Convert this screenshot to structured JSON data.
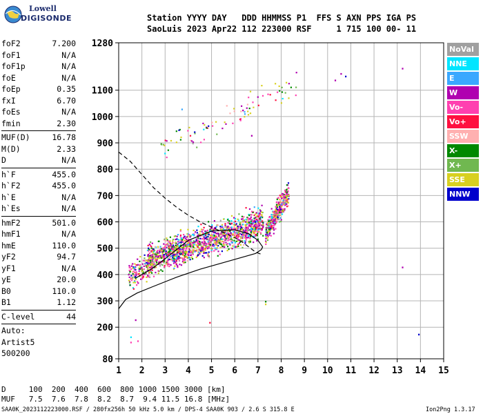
{
  "logo": {
    "line1": "Lowell",
    "line2": "DIGISONDE"
  },
  "header": {
    "line1": "Station YYYY DAY   DDD HHMMSS P1  FFS S AXN PPS IGA PS",
    "line2": "SaoLuis 2023 Apr22 112 223000 RSF     1 715 100 00- 11"
  },
  "params": [
    {
      "label": "foF2",
      "value": "7.200"
    },
    {
      "label": "foF1",
      "value": "N/A"
    },
    {
      "label": "foF1p",
      "value": "N/A"
    },
    {
      "label": "foE",
      "value": "N/A"
    },
    {
      "label": "foEp",
      "value": "0.35"
    },
    {
      "label": "fxI",
      "value": "6.70"
    },
    {
      "label": "foEs",
      "value": "N/A"
    },
    {
      "label": "fmin",
      "value": "2.30"
    },
    {
      "sep": true
    },
    {
      "label": "MUF(D)",
      "value": "16.78"
    },
    {
      "label": "M(D)",
      "value": "2.33"
    },
    {
      "label": "D",
      "value": "N/A"
    },
    {
      "sep": true
    },
    {
      "label": "h`F",
      "value": "455.0"
    },
    {
      "label": "h`F2",
      "value": "455.0"
    },
    {
      "label": "h`E",
      "value": "N/A"
    },
    {
      "label": "h`Es",
      "value": "N/A"
    },
    {
      "sep": true
    },
    {
      "label": "hmF2",
      "value": "501.0"
    },
    {
      "label": "hmF1",
      "value": "N/A"
    },
    {
      "label": "hmE",
      "value": "110.0"
    },
    {
      "label": "yF2",
      "value": "94.7"
    },
    {
      "label": "yF1",
      "value": "N/A"
    },
    {
      "label": "yE",
      "value": "20.0"
    },
    {
      "label": "B0",
      "value": "110.0"
    },
    {
      "label": "B1",
      "value": "1.12"
    },
    {
      "sep": true
    },
    {
      "label": "C-level",
      "value": "44"
    },
    {
      "sep": true
    },
    {
      "text": "Auto:"
    },
    {
      "text": "Artist5"
    },
    {
      "text": "500200"
    }
  ],
  "legend": [
    {
      "label": "NoVal",
      "color": "#a0a0a0"
    },
    {
      "label": "NNE",
      "color": "#00e5ff"
    },
    {
      "label": "E",
      "color": "#3aa8ff"
    },
    {
      "label": "W",
      "color": "#b000b0"
    },
    {
      "label": "Vo-",
      "color": "#ff40b0"
    },
    {
      "label": "Vo+",
      "color": "#ff1040"
    },
    {
      "label": "SSW",
      "color": "#ffb0b0"
    },
    {
      "label": "X-",
      "color": "#008800"
    },
    {
      "label": "X+",
      "color": "#70b850"
    },
    {
      "label": "SSE",
      "color": "#d8d020"
    },
    {
      "label": "NNW",
      "color": "#0000cc"
    }
  ],
  "footer": {
    "distance_row": "D     100  200  400  600  800 1000 1500 3000 [km]",
    "muf_row": "MUF   7.5  7.6  7.8  8.2  8.7  9.4 11.5 16.8 [MHz]",
    "file_info": "SAA0K_2023112223000.RSF / 280fx256h 50 kHz 5.0 km / DPS-4 SAA0K 903 / 2.6 S 315.8 E",
    "version": "Ion2Png 1.3.17"
  },
  "chart_data": {
    "type": "scatter",
    "xlim": [
      1,
      15
    ],
    "ylim": [
      80,
      1280
    ],
    "x_ticks": [
      1,
      2,
      3,
      4,
      5,
      6,
      7,
      8,
      9,
      10,
      11,
      12,
      13,
      14,
      15
    ],
    "y_ticks": [
      80,
      200,
      300,
      400,
      500,
      600,
      700,
      800,
      900,
      1000,
      1100,
      1280
    ],
    "grid": true,
    "profile_curve": {
      "style": "solid",
      "points": [
        [
          1.0,
          270
        ],
        [
          1.3,
          305
        ],
        [
          1.8,
          330
        ],
        [
          2.5,
          355
        ],
        [
          3.5,
          390
        ],
        [
          4.5,
          420
        ],
        [
          5.5,
          445
        ],
        [
          6.3,
          465
        ],
        [
          6.9,
          480
        ],
        [
          7.15,
          495
        ],
        [
          7.2,
          505
        ],
        [
          7.0,
          530
        ],
        [
          6.6,
          555
        ],
        [
          6.0,
          570
        ],
        [
          5.0,
          565
        ],
        [
          4.0,
          530
        ],
        [
          3.0,
          460
        ],
        [
          2.4,
          420
        ],
        [
          2.0,
          400
        ],
        [
          1.7,
          385
        ]
      ]
    },
    "muf_curve": {
      "style": "dashed",
      "points": [
        [
          1.0,
          865
        ],
        [
          1.5,
          830
        ],
        [
          2.0,
          780
        ],
        [
          2.5,
          730
        ],
        [
          3.0,
          690
        ],
        [
          3.5,
          655
        ],
        [
          4.0,
          625
        ],
        [
          4.5,
          600
        ],
        [
          5.0,
          580
        ],
        [
          5.5,
          560
        ],
        [
          6.0,
          540
        ],
        [
          6.3,
          525
        ],
        [
          6.6,
          505
        ],
        [
          6.9,
          485
        ],
        [
          7.2,
          475
        ]
      ]
    },
    "echo_clusters": [
      {
        "name": "F2 trace",
        "x_range": [
          2.2,
          7.2
        ],
        "y_start": 455,
        "y_end": 600,
        "spread": 55,
        "count": 1500
      },
      {
        "name": "F2 trace low start",
        "x_range": [
          1.4,
          2.4
        ],
        "y_start": 390,
        "y_end": 440,
        "spread": 45,
        "count": 160
      },
      {
        "name": "near fo cluster",
        "x_range": [
          7.3,
          8.3
        ],
        "y_start": 560,
        "y_end": 715,
        "spread": 45,
        "count": 380
      },
      {
        "name": "second hop",
        "x_range": [
          2.8,
          8.8
        ],
        "y_start": 880,
        "y_end": 1130,
        "spread": 50,
        "count": 90
      }
    ],
    "isolated_points": [
      {
        "x": 1.5,
        "y": 165
      },
      {
        "x": 1.5,
        "y": 145
      },
      {
        "x": 1.7,
        "y": 230
      },
      {
        "x": 1.8,
        "y": 150
      },
      {
        "x": 7.3,
        "y": 300
      },
      {
        "x": 7.3,
        "y": 290
      },
      {
        "x": 13.2,
        "y": 1185
      },
      {
        "x": 13.2,
        "y": 430
      },
      {
        "x": 13.9,
        "y": 175
      },
      {
        "x": 10.55,
        "y": 1165
      },
      {
        "x": 10.75,
        "y": 1155
      },
      {
        "x": 4.9,
        "y": 220
      },
      {
        "x": 6.7,
        "y": 930
      },
      {
        "x": 10.3,
        "y": 1140
      },
      {
        "x": 3.7,
        "y": 1030
      }
    ]
  }
}
